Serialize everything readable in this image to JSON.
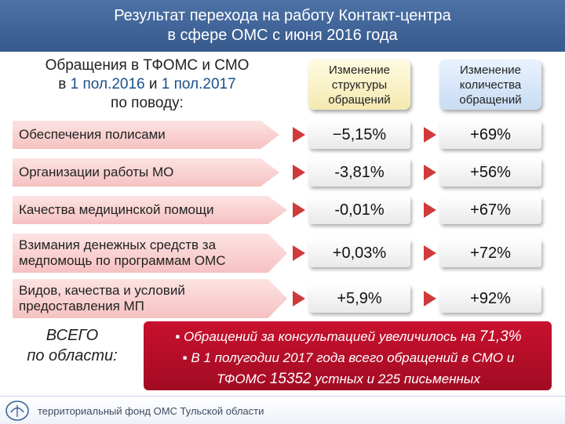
{
  "header": {
    "title_line1": "Результат перехода на работу Контакт-центра",
    "title_line2": "в сфере ОМС с июня 2016 года"
  },
  "subheader": {
    "line1": "Обращения в ТФОМС и СМО",
    "line2_prefix": "в ",
    "line2_hl1": "1 пол.2016",
    "line2_mid": " и ",
    "line2_hl2": "1 пол.2017",
    "line3": "по поводу:"
  },
  "columns": {
    "col1_line1": "Изменение",
    "col1_line2": "структуры",
    "col1_line3": "обращений",
    "col2_line1": "Изменение",
    "col2_line2": "количества",
    "col2_line3": "обращений"
  },
  "rows": [
    {
      "label_line1": "Обеспечения полисами",
      "label_line2": "",
      "structure_change": "−5,15%",
      "count_change": "+69%"
    },
    {
      "label_line1": "Организации работы МО",
      "label_line2": "",
      "structure_change": "-3,81%",
      "count_change": "+56%"
    },
    {
      "label_line1": "Качества медицинской помощи",
      "label_line2": "",
      "structure_change": "-0,01%",
      "count_change": "+67%"
    },
    {
      "label_line1": "Взимания денежных средств за",
      "label_line2": "медпомощь по программам ОМС",
      "structure_change": "+0,03%",
      "count_change": "+72%"
    },
    {
      "label_line1": "Видов, качества и условий",
      "label_line2": "предоставления МП",
      "structure_change": "+5,9%",
      "count_change": "+92%"
    }
  ],
  "total": {
    "line1": "ВСЕГО",
    "line2": "по области:"
  },
  "notes": {
    "bullet": "▪",
    "line1_prefix": " Обращений за консультацией увеличилось на ",
    "line1_value": "71,3%",
    "line2": " В 1 полугодии 2017 года всего обращений в СМО и",
    "line3_prefix": "ТФОМС ",
    "line3_value": "15352",
    "line3_suffix": " устных и 225 письменных"
  },
  "footer": {
    "org": "территориальный фонд ОМС Тульской области"
  },
  "colors": {
    "header_bg": "#3d6397",
    "notes_bg": "#c8102e",
    "row_label_bg": "#f6c1c1",
    "arrow": "#d13a3a"
  }
}
